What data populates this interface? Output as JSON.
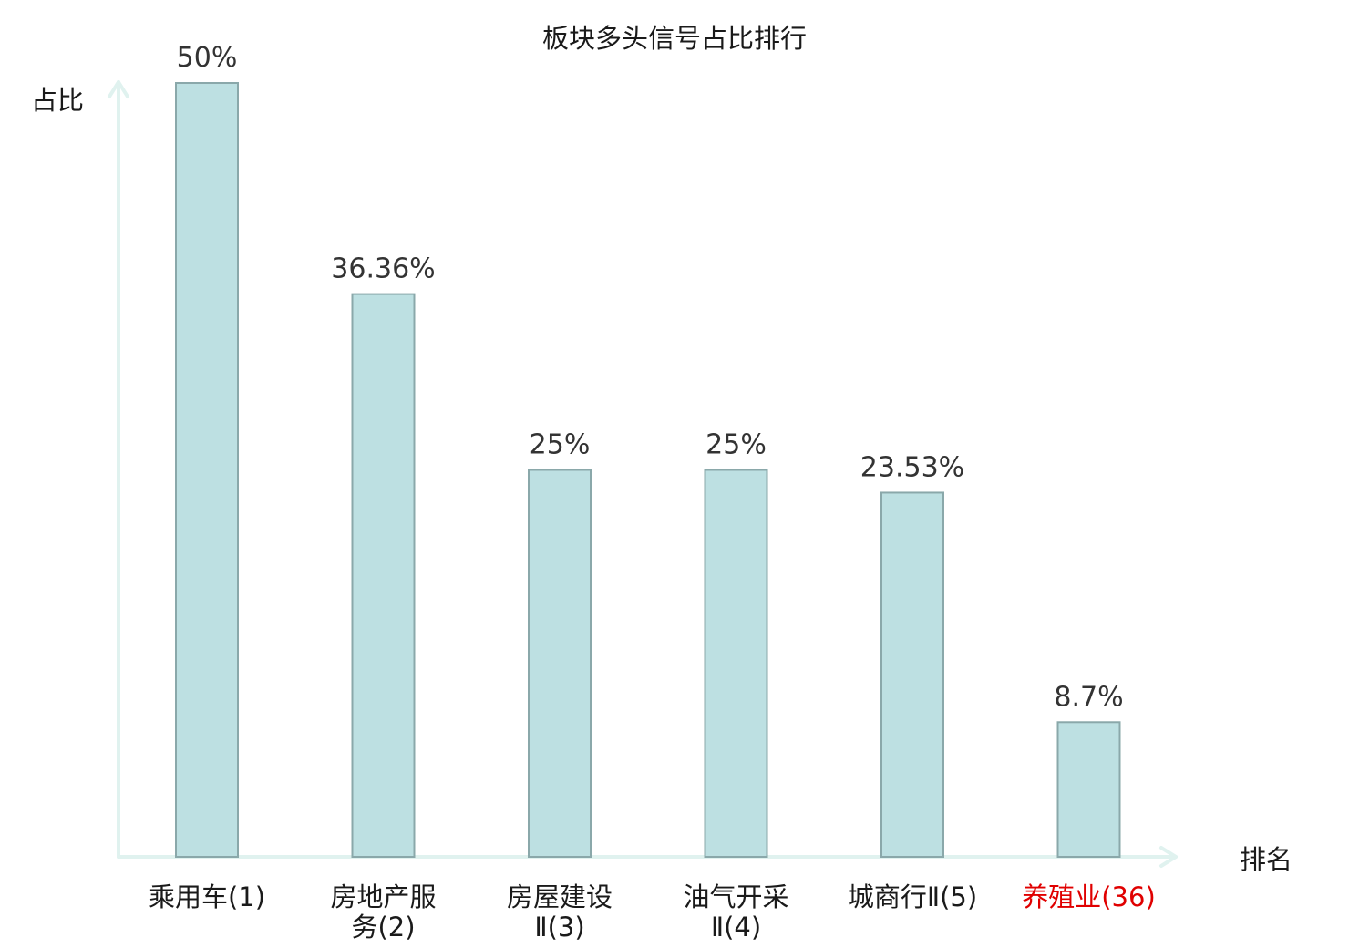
{
  "chart_data": {
    "type": "bar",
    "title": "板块多头信号占比排行",
    "ylabel": "占比",
    "xlabel": "排名",
    "ylim": [
      0,
      50
    ],
    "grid": false,
    "categories": [
      [
        "乘用车(1)"
      ],
      [
        "房地产服",
        "务(2)"
      ],
      [
        "房屋建设",
        "Ⅱ(3)"
      ],
      [
        "油气开采",
        "Ⅱ(4)"
      ],
      [
        "城商行Ⅱ(5)"
      ],
      [
        "养殖业(36)"
      ]
    ],
    "values": [
      50,
      36.36,
      25,
      25,
      23.53,
      8.7
    ],
    "value_labels": [
      "50%",
      "36.36%",
      "25%",
      "25%",
      "23.53%",
      "8.7%"
    ],
    "highlight_index": 5,
    "colors": {
      "bar_fill": "#bde0e2",
      "bar_stroke": "#8aa8aa",
      "axis": "#e0f2ef",
      "text": "#1a1a1a",
      "value_text": "#333333",
      "highlight": "#e00000"
    }
  }
}
